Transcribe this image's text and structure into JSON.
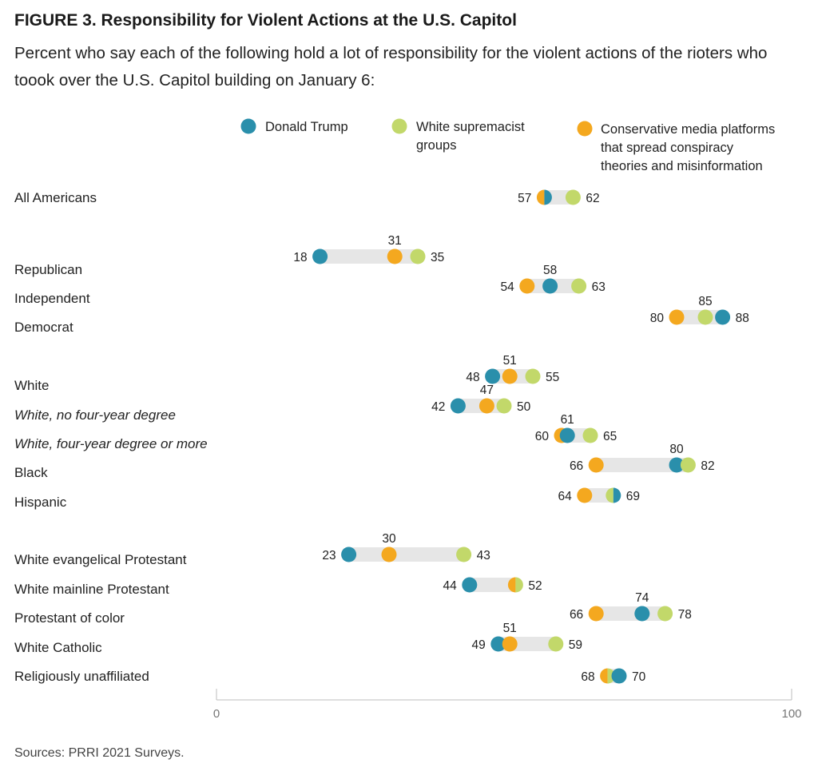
{
  "title": "FIGURE 3.  Responsibility for Violent Actions at the U.S. Capitol",
  "subtitle": "Percent who say each of the following hold a lot of responsibility for the violent actions of the rioters who toook over the U.S. Capitol building on January 6:",
  "source": "Sources: PRRI 2021 Surveys.",
  "colors": {
    "trump": "#2a8fab",
    "white_supremacist": "#c2d86a",
    "conservative_media": "#f4a81f",
    "bar": "#e6e6e6",
    "axis": "#bdbdbd"
  },
  "chart_data": {
    "type": "dot-range",
    "xlim": [
      0,
      100
    ],
    "x_ticks": [
      "0",
      "100"
    ],
    "legend": [
      {
        "key": "trump",
        "lines": [
          "Donald Trump"
        ]
      },
      {
        "key": "white_supremacist",
        "lines": [
          "White supremacist",
          "groups"
        ]
      },
      {
        "key": "conservative_media",
        "lines": [
          "Conservative media platforms",
          "that spread conspiracy",
          "theories and misinformation"
        ]
      }
    ],
    "series": [
      {
        "key": "trump",
        "name": "Donald Trump"
      },
      {
        "key": "white_supremacist",
        "name": "White supremacist groups"
      },
      {
        "key": "conservative_media",
        "name": "Conservative media platforms that spread conspiracy theories and misinformation"
      }
    ],
    "rows": [
      {
        "label": "All Americans",
        "italic": false,
        "trump": 57,
        "white_supremacist": 62,
        "conservative_media": 57
      },
      {
        "label": "Republican",
        "italic": false,
        "trump": 18,
        "white_supremacist": 35,
        "conservative_media": 31
      },
      {
        "label": "Independent",
        "italic": false,
        "trump": 58,
        "white_supremacist": 63,
        "conservative_media": 54
      },
      {
        "label": "Democrat",
        "italic": false,
        "trump": 88,
        "white_supremacist": 85,
        "conservative_media": 80
      },
      {
        "label": "White",
        "italic": false,
        "trump": 48,
        "white_supremacist": 55,
        "conservative_media": 51
      },
      {
        "label": "White, no four-year degree",
        "italic": true,
        "trump": 42,
        "white_supremacist": 50,
        "conservative_media": 47
      },
      {
        "label": "White, four-year degree or more",
        "italic": true,
        "trump": 61,
        "white_supremacist": 65,
        "conservative_media": 60
      },
      {
        "label": "Black",
        "italic": false,
        "trump": 80,
        "white_supremacist": 82,
        "conservative_media": 66
      },
      {
        "label": "Hispanic",
        "italic": false,
        "trump": 69,
        "white_supremacist": 69,
        "conservative_media": 64
      },
      {
        "label": "White evangelical Protestant",
        "italic": false,
        "trump": 23,
        "white_supremacist": 43,
        "conservative_media": 30
      },
      {
        "label": "White mainline Protestant",
        "italic": false,
        "trump": 44,
        "white_supremacist": 52,
        "conservative_media": 52
      },
      {
        "label": "Protestant of color",
        "italic": false,
        "trump": 74,
        "white_supremacist": 78,
        "conservative_media": 66
      },
      {
        "label": "White Catholic",
        "italic": false,
        "trump": 49,
        "white_supremacist": 59,
        "conservative_media": 51
      },
      {
        "label": "Religiously unaffiliated",
        "italic": false,
        "trump": 70,
        "white_supremacist": 68,
        "conservative_media": 68
      }
    ]
  }
}
